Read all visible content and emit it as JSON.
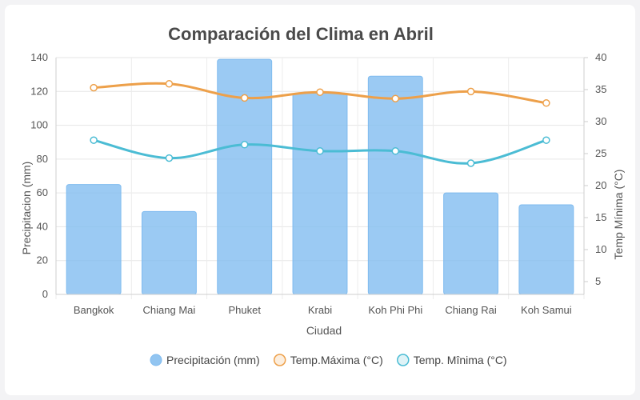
{
  "chart_data": {
    "type": "bar",
    "title": "Comparación del Clima en Abril",
    "xlabel": "Ciudad",
    "ylabel": "Precipitacion (mm)",
    "y2label": "Temp Mínima (°C)",
    "categories": [
      "Bangkok",
      "Chiang Mai",
      "Phuket",
      "Krabi",
      "Koh Phi Phi",
      "Chiang Rai",
      "Koh Samui"
    ],
    "ylim": [
      0,
      140
    ],
    "y_ticks": [
      0,
      20,
      40,
      60,
      80,
      100,
      120,
      140
    ],
    "y2lim": [
      3,
      40
    ],
    "y2_ticks": [
      5,
      10,
      15,
      20,
      25,
      30,
      35,
      40
    ],
    "grid": true,
    "legend_position": "bottom",
    "series": [
      {
        "name": "Precipitación (mm)",
        "type": "bar",
        "axis": "left",
        "values": [
          65,
          49,
          139,
          119,
          129,
          60,
          53
        ],
        "color": "#7fbbef"
      },
      {
        "name": "Temp.Máxima (°C)",
        "type": "line",
        "axis": "right",
        "values": [
          35.3,
          35.9,
          33.7,
          34.6,
          33.6,
          34.7,
          32.9
        ],
        "color": "#eda04a"
      },
      {
        "name": "Temp. Mînima (°C)",
        "type": "line",
        "axis": "right",
        "values": [
          27.1,
          24.3,
          26.4,
          25.4,
          25.4,
          23.5,
          27.1
        ],
        "color": "#4bbcd4"
      }
    ]
  }
}
